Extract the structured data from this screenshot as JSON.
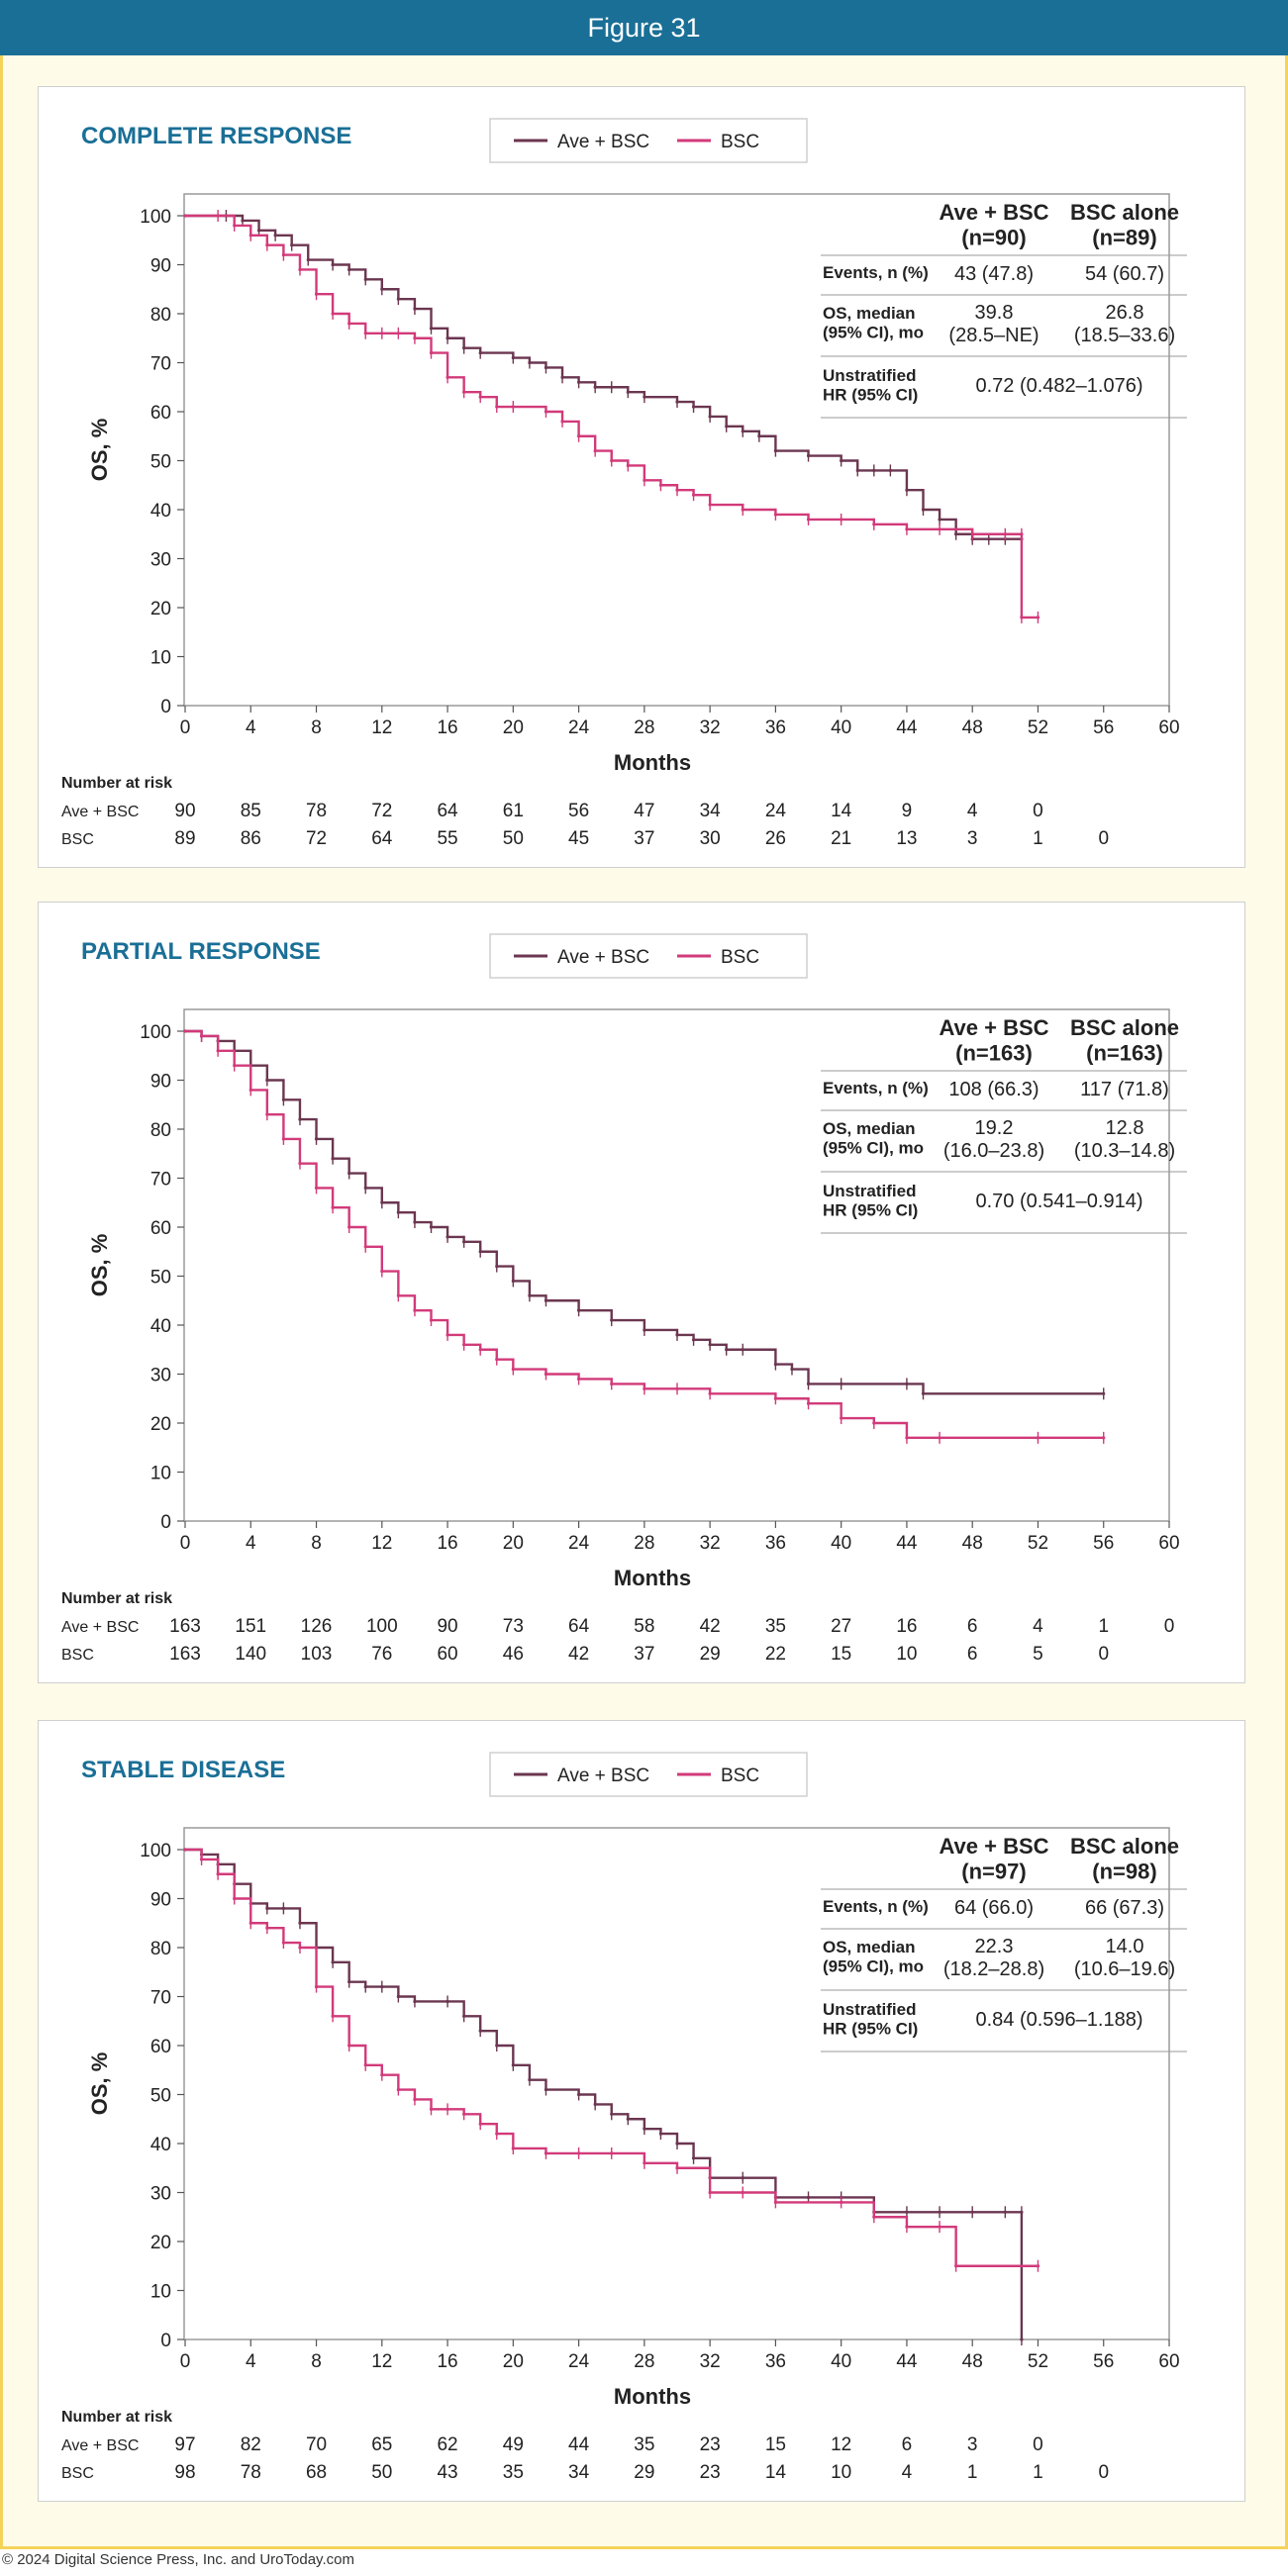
{
  "header": {
    "title": "Figure 31"
  },
  "footer": {
    "copyright": "© 2024 Digital Science Press, Inc. and UroToday.com"
  },
  "axes": {
    "ylabel": "OS, %",
    "xlabel": "Months",
    "risk_title": "Number at risk"
  },
  "legend": {
    "ave": "Ave + BSC",
    "bsc": "BSC"
  },
  "colors": {
    "ave": "#6b3650",
    "bsc": "#d23a7a",
    "title": "#1a6f96",
    "frame": "#f3d35a"
  },
  "chart_data": [
    {
      "type": "line",
      "title": "COMPLETE RESPONSE",
      "xlabel": "Months",
      "ylabel": "OS, %",
      "xlim": [
        0,
        60
      ],
      "ylim": [
        0,
        100
      ],
      "xticks": [
        0,
        4,
        8,
        12,
        16,
        20,
        24,
        28,
        32,
        36,
        40,
        44,
        48,
        52,
        56,
        60
      ],
      "yticks": [
        0,
        10,
        20,
        30,
        40,
        50,
        60,
        70,
        80,
        90,
        100
      ],
      "legend_position": "top",
      "series": [
        {
          "name": "Ave + BSC",
          "x": [
            0,
            2.5,
            3.5,
            4.5,
            5.5,
            6.5,
            7.5,
            9,
            10,
            11,
            12,
            13,
            14,
            15,
            16,
            17,
            18,
            20,
            21,
            22,
            23,
            24,
            25,
            26,
            27,
            28,
            30,
            31,
            32,
            33,
            34,
            35,
            36,
            38,
            40,
            41,
            42,
            43,
            44,
            45,
            46,
            47,
            48,
            49,
            50,
            51
          ],
          "y": [
            100,
            100,
            99,
            97,
            96,
            94,
            91,
            90,
            89,
            87,
            85,
            83,
            81,
            77,
            75,
            73,
            72,
            71,
            70,
            69,
            67,
            66,
            65,
            65,
            64,
            63,
            62,
            61,
            59,
            57,
            56,
            55,
            52,
            51,
            50,
            48,
            48,
            48,
            44,
            40,
            38,
            35,
            34,
            34,
            34,
            34
          ]
        },
        {
          "name": "BSC",
          "x": [
            0,
            2,
            3,
            4,
            5,
            6,
            7,
            8,
            9,
            10,
            11,
            12,
            13,
            14,
            15,
            16,
            17,
            18,
            19,
            20,
            22,
            23,
            24,
            25,
            26,
            27,
            28,
            29,
            30,
            31,
            32,
            34,
            36,
            38,
            40,
            42,
            44,
            46,
            48,
            50,
            51,
            51,
            52
          ],
          "y": [
            100,
            100,
            98,
            96,
            94,
            92,
            89,
            84,
            80,
            78,
            76,
            76,
            76,
            75,
            72,
            67,
            64,
            63,
            61,
            61,
            60,
            58,
            55,
            52,
            50,
            49,
            46,
            45,
            44,
            43,
            41,
            40,
            39,
            38,
            38,
            37,
            36,
            36,
            35,
            35,
            35,
            18,
            18
          ]
        }
      ],
      "table": {
        "headers": [
          "Ave + BSC\n(n=90)",
          "BSC alone\n(n=89)"
        ],
        "rows": [
          {
            "label": "Events, n (%)",
            "ave": "43 (47.8)",
            "bsc": "54 (60.7)"
          },
          {
            "label": "OS, median\n(95% CI), mo",
            "ave": "39.8\n(28.5–NE)",
            "bsc": "26.8\n(18.5–33.6)"
          },
          {
            "label": "Unstratified\nHR (95% CI)",
            "span": "0.72 (0.482–1.076)"
          }
        ]
      },
      "risk": {
        "ave": [
          "90",
          "85",
          "78",
          "72",
          "64",
          "61",
          "56",
          "47",
          "34",
          "24",
          "14",
          "9",
          "4",
          "0"
        ],
        "bsc": [
          "89",
          "86",
          "72",
          "64",
          "55",
          "50",
          "45",
          "37",
          "30",
          "26",
          "21",
          "13",
          "3",
          "1",
          "0"
        ]
      }
    },
    {
      "type": "line",
      "title": "PARTIAL RESPONSE",
      "xlabel": "Months",
      "ylabel": "OS, %",
      "xlim": [
        0,
        60
      ],
      "ylim": [
        0,
        100
      ],
      "xticks": [
        0,
        4,
        8,
        12,
        16,
        20,
        24,
        28,
        32,
        36,
        40,
        44,
        48,
        52,
        56,
        60
      ],
      "yticks": [
        0,
        10,
        20,
        30,
        40,
        50,
        60,
        70,
        80,
        90,
        100
      ],
      "legend_position": "top",
      "series": [
        {
          "name": "Ave + BSC",
          "x": [
            0,
            1,
            2,
            3,
            4,
            5,
            6,
            7,
            8,
            9,
            10,
            11,
            12,
            13,
            14,
            15,
            16,
            17,
            18,
            19,
            20,
            21,
            22,
            24,
            26,
            28,
            30,
            31,
            32,
            33,
            34,
            36,
            37,
            38,
            40,
            44,
            45,
            56
          ],
          "y": [
            100,
            99,
            98,
            96,
            93,
            90,
            86,
            82,
            78,
            74,
            71,
            68,
            65,
            63,
            61,
            60,
            58,
            57,
            55,
            52,
            49,
            46,
            45,
            43,
            41,
            39,
            38,
            37,
            36,
            35,
            35,
            32,
            31,
            28,
            28,
            28,
            26,
            26
          ]
        },
        {
          "name": "BSC",
          "x": [
            0,
            1,
            2,
            3,
            4,
            5,
            6,
            7,
            8,
            9,
            10,
            11,
            12,
            13,
            14,
            15,
            16,
            17,
            18,
            19,
            20,
            22,
            24,
            26,
            28,
            30,
            32,
            36,
            38,
            40,
            42,
            44,
            46,
            52,
            56
          ],
          "y": [
            100,
            99,
            96,
            93,
            88,
            83,
            78,
            73,
            68,
            64,
            60,
            56,
            51,
            46,
            43,
            41,
            38,
            36,
            35,
            33,
            31,
            30,
            29,
            28,
            27,
            27,
            26,
            25,
            24,
            21,
            20,
            17,
            17,
            17,
            17
          ]
        }
      ],
      "table": {
        "headers": [
          "Ave + BSC\n(n=163)",
          "BSC alone\n(n=163)"
        ],
        "rows": [
          {
            "label": "Events, n (%)",
            "ave": "108 (66.3)",
            "bsc": "117 (71.8)"
          },
          {
            "label": "OS, median\n(95% CI), mo",
            "ave": "19.2\n(16.0–23.8)",
            "bsc": "12.8\n(10.3–14.8)"
          },
          {
            "label": "Unstratified\nHR (95% CI)",
            "span": "0.70 (0.541–0.914)"
          }
        ]
      },
      "risk": {
        "ave": [
          "163",
          "151",
          "126",
          "100",
          "90",
          "73",
          "64",
          "58",
          "42",
          "35",
          "27",
          "16",
          "6",
          "4",
          "1",
          "0"
        ],
        "bsc": [
          "163",
          "140",
          "103",
          "76",
          "60",
          "46",
          "42",
          "37",
          "29",
          "22",
          "15",
          "10",
          "6",
          "5",
          "0"
        ]
      }
    },
    {
      "type": "line",
      "title": "STABLE DISEASE",
      "xlabel": "Months",
      "ylabel": "OS, %",
      "xlim": [
        0,
        60
      ],
      "ylim": [
        0,
        100
      ],
      "xticks": [
        0,
        4,
        8,
        12,
        16,
        20,
        24,
        28,
        32,
        36,
        40,
        44,
        48,
        52,
        56,
        60
      ],
      "yticks": [
        0,
        10,
        20,
        30,
        40,
        50,
        60,
        70,
        80,
        90,
        100
      ],
      "legend_position": "top",
      "series": [
        {
          "name": "Ave + BSC",
          "x": [
            0,
            1,
            2,
            3,
            4,
            5,
            6,
            7,
            8,
            9,
            10,
            11,
            12,
            13,
            14,
            16,
            17,
            18,
            19,
            20,
            21,
            22,
            24,
            25,
            26,
            27,
            28,
            29,
            30,
            31,
            32,
            34,
            36,
            38,
            40,
            42,
            44,
            46,
            48,
            50,
            51,
            51
          ],
          "y": [
            100,
            99,
            97,
            93,
            89,
            88,
            88,
            85,
            80,
            77,
            73,
            72,
            72,
            70,
            69,
            69,
            66,
            63,
            60,
            56,
            53,
            51,
            50,
            48,
            46,
            45,
            43,
            42,
            40,
            37,
            33,
            33,
            29,
            29,
            29,
            26,
            26,
            26,
            26,
            26,
            26,
            0
          ]
        },
        {
          "name": "BSC",
          "x": [
            0,
            1,
            2,
            3,
            4,
            5,
            6,
            7,
            8,
            9,
            10,
            11,
            12,
            13,
            14,
            15,
            16,
            17,
            18,
            19,
            20,
            22,
            24,
            26,
            28,
            30,
            32,
            34,
            36,
            40,
            42,
            44,
            46,
            47,
            52
          ],
          "y": [
            100,
            98,
            95,
            90,
            85,
            84,
            81,
            80,
            72,
            66,
            60,
            56,
            54,
            51,
            49,
            47,
            47,
            46,
            44,
            42,
            39,
            38,
            38,
            38,
            36,
            35,
            30,
            30,
            28,
            28,
            25,
            23,
            23,
            15,
            15
          ]
        }
      ],
      "table": {
        "headers": [
          "Ave + BSC\n(n=97)",
          "BSC alone\n(n=98)"
        ],
        "rows": [
          {
            "label": "Events, n (%)",
            "ave": "64 (66.0)",
            "bsc": "66 (67.3)"
          },
          {
            "label": "OS, median\n(95% CI), mo",
            "ave": "22.3\n(18.2–28.8)",
            "bsc": "14.0\n(10.6–19.6)"
          },
          {
            "label": "Unstratified\nHR (95% CI)",
            "span": "0.84 (0.596–1.188)"
          }
        ]
      },
      "risk": {
        "ave": [
          "97",
          "82",
          "70",
          "65",
          "62",
          "49",
          "44",
          "35",
          "23",
          "15",
          "12",
          "6",
          "3",
          "0"
        ],
        "bsc": [
          "98",
          "78",
          "68",
          "50",
          "43",
          "35",
          "34",
          "29",
          "23",
          "14",
          "10",
          "4",
          "1",
          "1",
          "0"
        ]
      }
    }
  ]
}
